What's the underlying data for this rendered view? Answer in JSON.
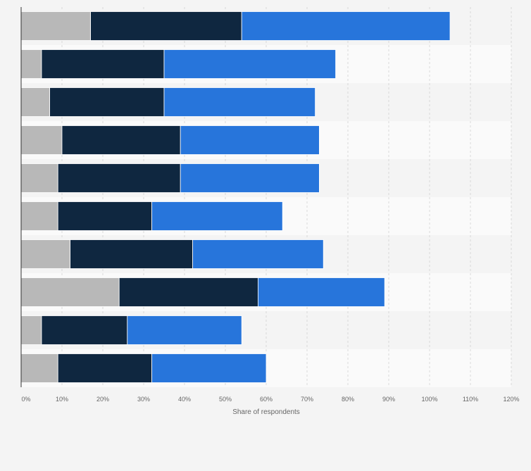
{
  "chart_data": {
    "type": "bar",
    "orientation": "horizontal",
    "stacked": true,
    "title": "",
    "xlabel": "Share of respondents",
    "ylabel": "",
    "xlim": [
      0,
      120
    ],
    "x_ticks": [
      "0%",
      "10%",
      "20%",
      "30%",
      "40%",
      "50%",
      "60%",
      "70%",
      "80%",
      "90%",
      "100%",
      "110%",
      "120%"
    ],
    "grid": true,
    "legend": "none",
    "categories": [
      "",
      "",
      "",
      "",
      "",
      "",
      "",
      "",
      "",
      ""
    ],
    "series": [
      {
        "color": "#b8b8b8",
        "values": [
          17,
          5,
          7,
          10,
          9,
          9,
          12,
          24,
          5,
          9
        ]
      },
      {
        "color": "#0f2740",
        "values": [
          37,
          30,
          28,
          29,
          30,
          23,
          30,
          34,
          21,
          23
        ]
      },
      {
        "color": "#2775db",
        "values": [
          51,
          42,
          37,
          34,
          34,
          32,
          32,
          31,
          28,
          28
        ]
      }
    ]
  }
}
